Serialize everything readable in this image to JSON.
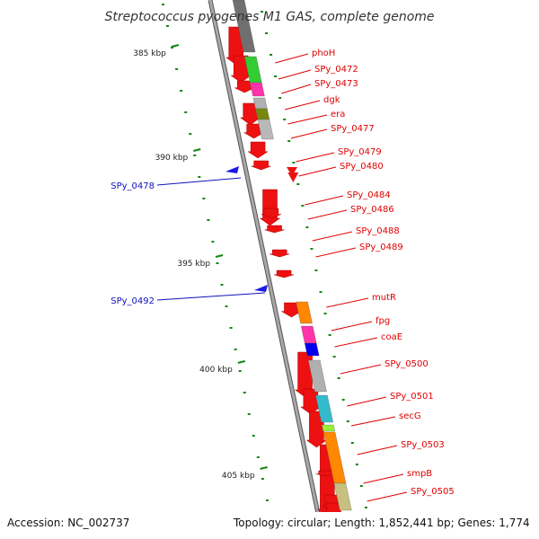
{
  "title": "Streptococcus pyogenes M1 GAS, complete genome",
  "footer": {
    "accession": "Accession: NC_002737",
    "summary": "Topology: circular; Length: 1,852,441 bp; Genes: 1,774"
  },
  "colors": {
    "forward": "#ee1111",
    "reverse": "#1a1ae6",
    "backbone": "#888888",
    "tick": "#118811",
    "label_red": "#e00000",
    "label_blue": "#1010c0"
  },
  "scale_labels": [
    "385 kbp",
    "390 kbp",
    "395 kbp",
    "400 kbp",
    "405 kbp"
  ],
  "gene_labels_forward": [
    "phoH",
    "SPy_0472",
    "SPy_0473",
    "dgk",
    "era",
    "SPy_0477",
    "SPy_0479",
    "SPy_0480",
    "SPy_0484",
    "SPy_0486",
    "SPy_0488",
    "SPy_0489",
    "mutR",
    "fpg",
    "coaE",
    "SPy_0500",
    "SPy_0501",
    "secG",
    "SPy_0503",
    "smpB",
    "SPy_0505"
  ],
  "gene_labels_reverse": [
    "SPy_0478",
    "SPy_0492"
  ],
  "cog_colors": [
    "#707070",
    "#33cc33",
    "#ff33aa",
    "#b0b0b0",
    "#778811",
    "#b8b8b8",
    "#ff8800",
    "#ff33aa",
    "#0000ee",
    "#b0b0b0",
    "#33bbcc",
    "#99ee33",
    "#ff8800",
    "#c8c080"
  ]
}
